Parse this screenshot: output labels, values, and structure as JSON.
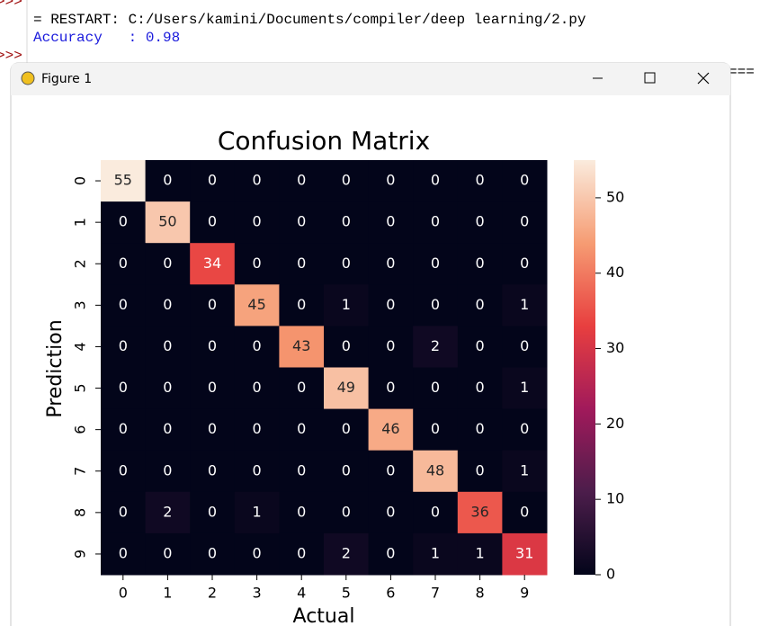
{
  "shell": {
    "prompt": ">>>",
    "restart_line": "= RESTART: C:/Users/kamini/Documents/compiler/deep learning/2.py",
    "output_line": "Accuracy   : 0.98",
    "divider": "==="
  },
  "window": {
    "title": "Figure 1"
  },
  "chart_data": {
    "type": "heatmap",
    "title": "Confusion Matrix",
    "x_label": "Actual",
    "y_label": "Prediction",
    "x_categories": [
      "0",
      "1",
      "2",
      "3",
      "4",
      "5",
      "6",
      "7",
      "8",
      "9"
    ],
    "y_categories": [
      "0",
      "1",
      "2",
      "3",
      "4",
      "5",
      "6",
      "7",
      "8",
      "9"
    ],
    "values": [
      [
        55,
        0,
        0,
        0,
        0,
        0,
        0,
        0,
        0,
        0
      ],
      [
        0,
        50,
        0,
        0,
        0,
        0,
        0,
        0,
        0,
        0
      ],
      [
        0,
        0,
        34,
        0,
        0,
        0,
        0,
        0,
        0,
        0
      ],
      [
        0,
        0,
        0,
        45,
        0,
        1,
        0,
        0,
        0,
        1
      ],
      [
        0,
        0,
        0,
        0,
        43,
        0,
        0,
        2,
        0,
        0
      ],
      [
        0,
        0,
        0,
        0,
        0,
        49,
        0,
        0,
        0,
        1
      ],
      [
        0,
        0,
        0,
        0,
        0,
        0,
        46,
        0,
        0,
        0
      ],
      [
        0,
        0,
        0,
        0,
        0,
        0,
        0,
        48,
        0,
        1
      ],
      [
        0,
        2,
        0,
        1,
        0,
        0,
        0,
        0,
        36,
        0
      ],
      [
        0,
        0,
        0,
        0,
        0,
        2,
        0,
        1,
        1,
        31
      ]
    ],
    "zlim": [
      0,
      55
    ],
    "zticks": [
      0,
      10,
      20,
      30,
      40,
      50
    ],
    "colors": [
      "#03051a",
      "#4c1d4b",
      "#a11a5b",
      "#e83f3f",
      "#f69c73",
      "#faebdd"
    ]
  }
}
